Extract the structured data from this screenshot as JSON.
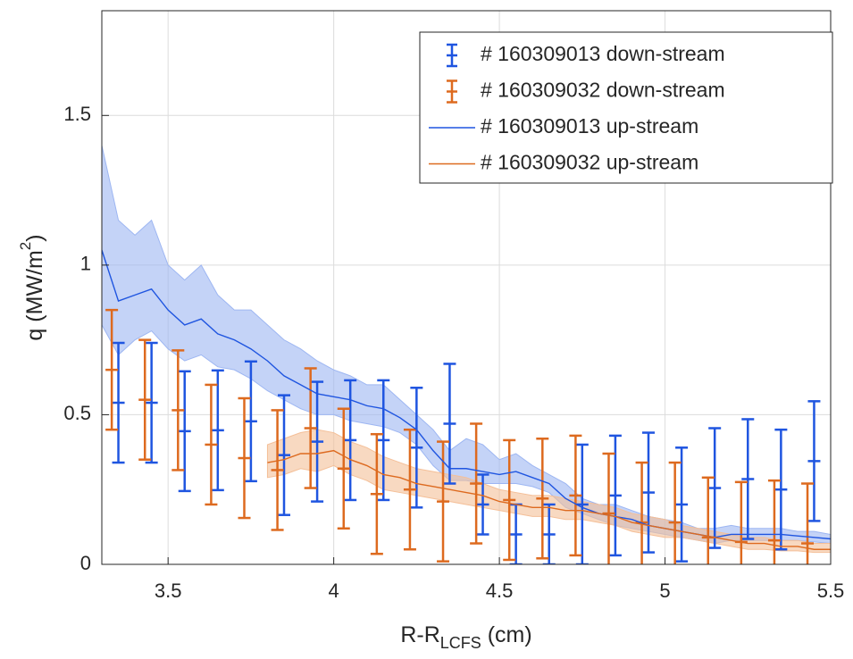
{
  "chart_data": {
    "type": "line",
    "xlabel": "R-R",
    "xlabel_sub": "LCFS",
    "xlabel_end": " (cm)",
    "ylabel": "q (MW/m",
    "ylabel_sup": "2",
    "ylabel_end": ")",
    "xlim": [
      3.3,
      5.5
    ],
    "ylim": [
      0,
      1.85
    ],
    "xticks": [
      3.5,
      4,
      4.5,
      5,
      5.5
    ],
    "yticks": [
      0,
      0.5,
      1,
      1.5
    ],
    "grid": true,
    "legend": "upper right",
    "series": [
      {
        "name": "# 160309013 down-stream",
        "color": "#1f55e0",
        "kind": "errorbar",
        "x": [
          3.35,
          3.45,
          3.55,
          3.65,
          3.75,
          3.85,
          3.95,
          4.05,
          4.15,
          4.25,
          4.35,
          4.45,
          4.55,
          4.65,
          4.75,
          4.85,
          4.95,
          5.05,
          5.15,
          5.25,
          5.35,
          5.45
        ],
        "values": [
          0.54,
          0.54,
          0.445,
          0.448,
          0.478,
          0.365,
          0.41,
          0.415,
          0.415,
          0.39,
          0.47,
          0.2,
          0.1,
          0.1,
          0.2,
          0.23,
          0.24,
          0.2,
          0.255,
          0.285,
          0.25,
          0.345
        ],
        "errors": [
          0.2,
          0.2,
          0.2,
          0.2,
          0.2,
          0.2,
          0.2,
          0.2,
          0.2,
          0.2,
          0.2,
          0.1,
          0.1,
          0.1,
          0.2,
          0.2,
          0.2,
          0.19,
          0.2,
          0.2,
          0.2,
          0.2
        ]
      },
      {
        "name": "# 160309032 down-stream",
        "color": "#dd6a1f",
        "kind": "errorbar",
        "x": [
          3.33,
          3.43,
          3.53,
          3.63,
          3.73,
          3.83,
          3.93,
          4.03,
          4.13,
          4.23,
          4.33,
          4.43,
          4.53,
          4.63,
          4.73,
          4.83,
          4.93,
          5.03,
          5.13,
          5.23,
          5.33,
          5.43
        ],
        "values": [
          0.65,
          0.55,
          0.515,
          0.4,
          0.355,
          0.315,
          0.455,
          0.32,
          0.235,
          0.25,
          0.21,
          0.27,
          0.215,
          0.22,
          0.23,
          0.17,
          0.14,
          0.14,
          0.09,
          0.075,
          0.08,
          0.07
        ],
        "errors": [
          0.2,
          0.2,
          0.2,
          0.2,
          0.2,
          0.2,
          0.2,
          0.2,
          0.2,
          0.2,
          0.2,
          0.2,
          0.2,
          0.2,
          0.2,
          0.2,
          0.2,
          0.2,
          0.2,
          0.2,
          0.2,
          0.2
        ]
      },
      {
        "name": "# 160309013 up-stream",
        "color": "#1f55e0",
        "kind": "line",
        "band_color": "#9db6f2",
        "x": [
          3.3,
          3.35,
          3.4,
          3.45,
          3.5,
          3.55,
          3.6,
          3.65,
          3.7,
          3.75,
          3.8,
          3.85,
          3.9,
          3.95,
          4.0,
          4.05,
          4.1,
          4.15,
          4.2,
          4.25,
          4.3,
          4.35,
          4.4,
          4.45,
          4.5,
          4.55,
          4.6,
          4.65,
          4.7,
          4.75,
          4.8,
          4.85,
          4.9,
          4.95,
          5.0,
          5.05,
          5.1,
          5.15,
          5.2,
          5.25,
          5.3,
          5.35,
          5.4,
          5.45,
          5.5
        ],
        "values": [
          1.05,
          0.88,
          0.9,
          0.92,
          0.85,
          0.8,
          0.82,
          0.77,
          0.75,
          0.72,
          0.68,
          0.63,
          0.6,
          0.57,
          0.56,
          0.55,
          0.53,
          0.52,
          0.49,
          0.45,
          0.38,
          0.32,
          0.32,
          0.31,
          0.3,
          0.31,
          0.29,
          0.27,
          0.22,
          0.19,
          0.17,
          0.16,
          0.15,
          0.13,
          0.12,
          0.11,
          0.1,
          0.09,
          0.1,
          0.1,
          0.1,
          0.1,
          0.095,
          0.09,
          0.085
        ],
        "upper": [
          1.4,
          1.15,
          1.1,
          1.15,
          1.0,
          0.95,
          1.0,
          0.9,
          0.85,
          0.85,
          0.8,
          0.75,
          0.72,
          0.68,
          0.65,
          0.63,
          0.6,
          0.6,
          0.55,
          0.5,
          0.45,
          0.38,
          0.42,
          0.4,
          0.35,
          0.37,
          0.33,
          0.3,
          0.27,
          0.22,
          0.2,
          0.2,
          0.18,
          0.16,
          0.15,
          0.14,
          0.12,
          0.12,
          0.13,
          0.12,
          0.12,
          0.12,
          0.11,
          0.11,
          0.1
        ],
        "lower": [
          0.8,
          0.7,
          0.75,
          0.78,
          0.72,
          0.68,
          0.7,
          0.66,
          0.65,
          0.62,
          0.58,
          0.55,
          0.52,
          0.5,
          0.5,
          0.48,
          0.47,
          0.46,
          0.44,
          0.4,
          0.33,
          0.28,
          0.28,
          0.27,
          0.27,
          0.27,
          0.26,
          0.24,
          0.19,
          0.17,
          0.15,
          0.13,
          0.12,
          0.11,
          0.1,
          0.09,
          0.08,
          0.07,
          0.08,
          0.08,
          0.08,
          0.08,
          0.08,
          0.075,
          0.07
        ]
      },
      {
        "name": "# 160309032 up-stream",
        "color": "#dd6a1f",
        "kind": "line",
        "band_color": "#f4bf98",
        "x": [
          3.8,
          3.85,
          3.9,
          3.95,
          4.0,
          4.05,
          4.1,
          4.15,
          4.2,
          4.25,
          4.3,
          4.35,
          4.4,
          4.45,
          4.5,
          4.55,
          4.6,
          4.65,
          4.7,
          4.75,
          4.8,
          4.85,
          4.9,
          4.95,
          5.0,
          5.05,
          5.1,
          5.15,
          5.2,
          5.25,
          5.3,
          5.35,
          5.4,
          5.45,
          5.5
        ],
        "values": [
          0.34,
          0.35,
          0.37,
          0.37,
          0.38,
          0.35,
          0.33,
          0.3,
          0.29,
          0.27,
          0.26,
          0.25,
          0.24,
          0.23,
          0.21,
          0.2,
          0.19,
          0.19,
          0.18,
          0.18,
          0.17,
          0.16,
          0.14,
          0.13,
          0.12,
          0.11,
          0.1,
          0.09,
          0.08,
          0.07,
          0.07,
          0.06,
          0.06,
          0.05,
          0.05
        ],
        "upper": [
          0.4,
          0.42,
          0.44,
          0.45,
          0.44,
          0.41,
          0.39,
          0.36,
          0.34,
          0.32,
          0.31,
          0.3,
          0.29,
          0.27,
          0.25,
          0.24,
          0.23,
          0.23,
          0.22,
          0.21,
          0.2,
          0.19,
          0.17,
          0.16,
          0.15,
          0.13,
          0.12,
          0.11,
          0.1,
          0.09,
          0.09,
          0.08,
          0.08,
          0.07,
          0.07
        ],
        "lower": [
          0.29,
          0.3,
          0.32,
          0.31,
          0.33,
          0.3,
          0.28,
          0.25,
          0.24,
          0.23,
          0.22,
          0.21,
          0.2,
          0.19,
          0.18,
          0.17,
          0.16,
          0.16,
          0.15,
          0.15,
          0.14,
          0.13,
          0.11,
          0.1,
          0.09,
          0.09,
          0.08,
          0.07,
          0.06,
          0.05,
          0.05,
          0.045,
          0.045,
          0.04,
          0.04
        ]
      }
    ]
  }
}
